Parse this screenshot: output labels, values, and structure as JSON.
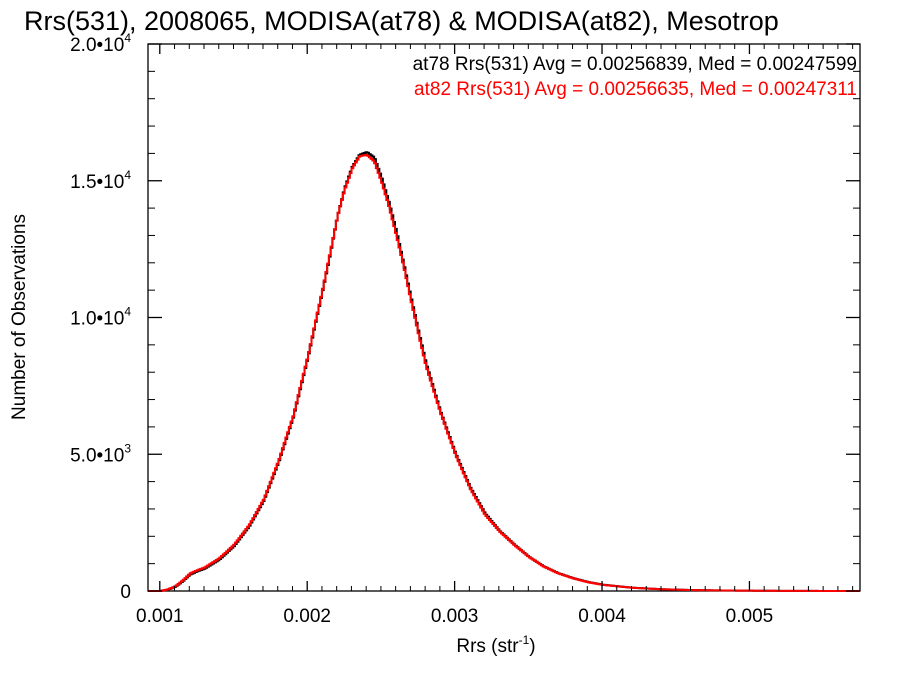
{
  "chart_data": {
    "type": "line",
    "title": "Rrs(531), 2008065, MODISA(at78) & MODISA(at82), Mesotrop",
    "xlabel": "Rrs (str",
    "xlabel_sup": "-1",
    "xlabel_close": ")",
    "ylabel": "Number of Observations",
    "xlim": [
      0.00092,
      0.00575
    ],
    "ylim": [
      0,
      20000
    ],
    "x_ticks": [
      0.001,
      0.002,
      0.003,
      0.004,
      0.005
    ],
    "x_tick_labels": [
      "0.001",
      "0.002",
      "0.003",
      "0.004",
      "0.005"
    ],
    "y_ticks": [
      0,
      5000,
      10000,
      15000,
      20000
    ],
    "y_tick_labels": [
      {
        "mantissa": "0",
        "exp": ""
      },
      {
        "mantissa": "5.0•1",
        "exp": "3"
      },
      {
        "mantissa": "1.0•1",
        "exp": "4"
      },
      {
        "mantissa": "1.5•1",
        "exp": "4"
      },
      {
        "mantissa": "2.0•1",
        "exp": "4"
      }
    ],
    "annotations": [
      {
        "text": "at78 Rrs(531) Avg = 0.00256839, Med = 0.00247599",
        "color": "#000000"
      },
      {
        "text": "at82 Rrs(531) Avg = 0.00256635, Med = 0.00247311",
        "color": "#ff0000"
      }
    ],
    "series": [
      {
        "color": "#000000",
        "x": [
          0.00092,
          0.001,
          0.00105,
          0.0011,
          0.00115,
          0.0012,
          0.00125,
          0.0013,
          0.0014,
          0.0015,
          0.0016,
          0.0017,
          0.0018,
          0.0019,
          0.002,
          0.0021,
          0.00215,
          0.0022,
          0.00225,
          0.0023,
          0.00235,
          0.0024,
          0.00245,
          0.0025,
          0.00255,
          0.0026,
          0.00265,
          0.0027,
          0.00275,
          0.0028,
          0.0029,
          0.003,
          0.0031,
          0.0032,
          0.0033,
          0.0034,
          0.0035,
          0.0036,
          0.0037,
          0.0038,
          0.0039,
          0.004,
          0.0042,
          0.0044,
          0.0046,
          0.0048,
          0.005,
          0.0052,
          0.0054,
          0.0056,
          0.00575
        ],
        "y": [
          0,
          0,
          50,
          150,
          350,
          600,
          720,
          820,
          1150,
          1650,
          2350,
          3300,
          4700,
          6350,
          8550,
          11000,
          12300,
          13700,
          14750,
          15500,
          15950,
          16050,
          15850,
          15100,
          14200,
          13150,
          11950,
          10700,
          9500,
          8350,
          6550,
          5050,
          3800,
          2850,
          2200,
          1700,
          1250,
          900,
          650,
          470,
          330,
          230,
          120,
          65,
          35,
          20,
          12,
          6,
          3,
          1,
          0
        ]
      },
      {
        "color": "#ff0000",
        "x": [
          0.00092,
          0.001,
          0.00105,
          0.0011,
          0.00115,
          0.0012,
          0.00125,
          0.0013,
          0.0014,
          0.0015,
          0.0016,
          0.0017,
          0.0018,
          0.0019,
          0.002,
          0.0021,
          0.00215,
          0.0022,
          0.00225,
          0.0023,
          0.00235,
          0.0024,
          0.00245,
          0.0025,
          0.00255,
          0.0026,
          0.00265,
          0.0027,
          0.00275,
          0.0028,
          0.0029,
          0.003,
          0.0031,
          0.0032,
          0.0033,
          0.0034,
          0.0035,
          0.0036,
          0.0037,
          0.0038,
          0.0039,
          0.004,
          0.0042,
          0.0044,
          0.0046,
          0.0048,
          0.005,
          0.0052,
          0.0054,
          0.0056,
          0.00575
        ],
        "y": [
          0,
          0,
          60,
          170,
          380,
          640,
          760,
          860,
          1200,
          1700,
          2400,
          3350,
          4750,
          6400,
          8600,
          11050,
          12350,
          13700,
          14700,
          15450,
          15900,
          15950,
          15700,
          14950,
          14050,
          13000,
          11850,
          10600,
          9400,
          8250,
          6500,
          5000,
          3750,
          2800,
          2180,
          1680,
          1240,
          890,
          640,
          460,
          320,
          225,
          118,
          64,
          34,
          20,
          12,
          6,
          3,
          1,
          0
        ]
      }
    ],
    "grid": false,
    "legend_placement": "top-right"
  }
}
